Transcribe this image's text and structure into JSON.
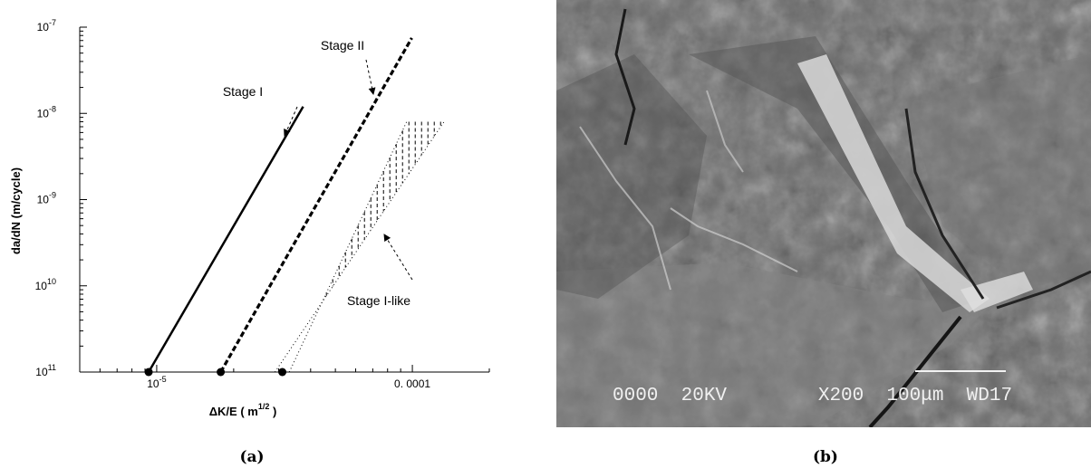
{
  "chart_data": {
    "type": "line",
    "x_axis": {
      "label": "ΔK/E ( m",
      "label_sup": "1/2",
      "label_tail": " )",
      "scale": "log",
      "range": [
        5e-06,
        0.0002
      ],
      "major_ticks": [
        {
          "value": 1e-05,
          "label": "10",
          "sup": "-5"
        },
        {
          "value": 0.0001,
          "label": "0. 0001",
          "sup": ""
        }
      ]
    },
    "y_axis": {
      "label": "da/dN (m/cycle)",
      "scale": "log",
      "range": [
        1e-11,
        1e-07
      ],
      "major_ticks": [
        {
          "value": 1e-11,
          "label": "10",
          "sup": "11"
        },
        {
          "value": 1e-10,
          "label": "10",
          "sup": "10"
        },
        {
          "value": 1e-09,
          "label": "10",
          "sup": "-9"
        },
        {
          "value": 1e-08,
          "label": "10",
          "sup": "-8"
        },
        {
          "value": 1e-07,
          "label": "10",
          "sup": "-7"
        }
      ]
    },
    "series": [
      {
        "name": "Stage I",
        "style": "solid",
        "points": [
          [
            9.3e-06,
            1e-11
          ],
          [
            3.74e-05,
            1.2e-08
          ]
        ]
      },
      {
        "name": "Stage II",
        "style": "dashed",
        "points": [
          [
            1.78e-05,
            1e-11
          ],
          [
            9.95e-05,
            7.5e-08
          ]
        ]
      }
    ],
    "band": {
      "name": "Stage I-like",
      "style": "hatched",
      "lower_edge": [
        [
          2.9e-05,
          1e-11
        ],
        [
          0.000133,
          8e-09
        ]
      ],
      "upper_edge": [
        [
          3.3e-05,
          1e-11
        ],
        [
          9.5e-05,
          8e-09
        ]
      ]
    },
    "threshold_markers": [
      {
        "x": 9.3e-06,
        "y": 1e-11
      },
      {
        "x": 1.78e-05,
        "y": 1e-11
      },
      {
        "x": 3.1e-05,
        "y": 1e-11
      }
    ],
    "annotations": [
      {
        "text": "Stage II",
        "target_series": "Stage II"
      },
      {
        "text": "Stage I",
        "target_series": "Stage I"
      },
      {
        "text": "Stage I-like",
        "target_series": "Stage I-like"
      }
    ]
  },
  "micrograph": {
    "scale_bar_text": "0000  20KV        X200  100μm  WD17"
  },
  "panel_labels": {
    "a": "(a)",
    "b": "(b)"
  }
}
